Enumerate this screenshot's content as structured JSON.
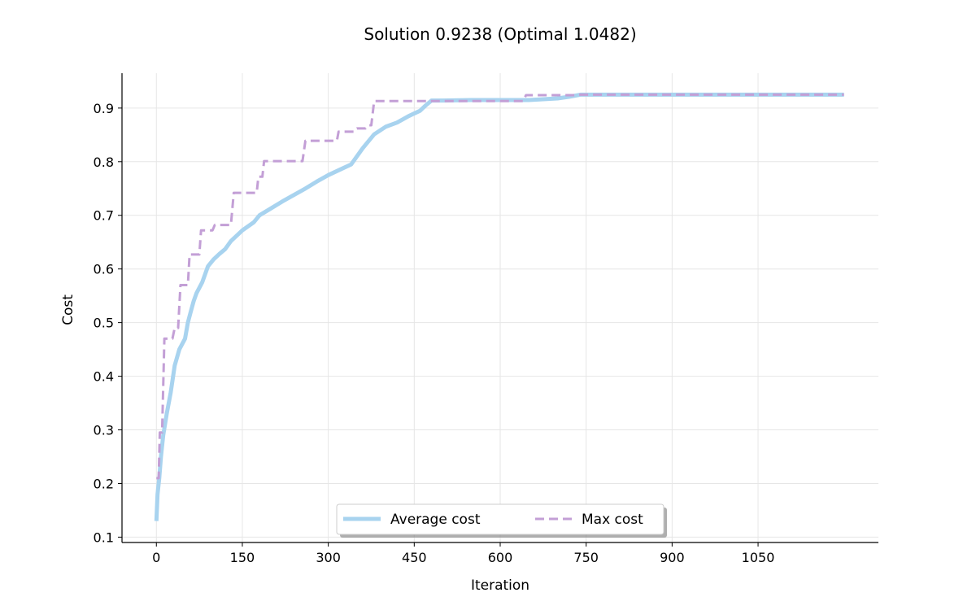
{
  "chart_data": {
    "type": "line",
    "title": "Solution 0.9238 (Optimal 1.0482)",
    "xlabel": "Iteration",
    "ylabel": "Cost",
    "xlim": [
      -60,
      1260
    ],
    "ylim": [
      0.09,
      0.965
    ],
    "xticks": [
      0,
      150,
      300,
      450,
      600,
      750,
      900,
      1050
    ],
    "yticks": [
      0.1,
      0.2,
      0.3,
      0.4,
      0.5,
      0.6,
      0.7,
      0.8,
      0.9
    ],
    "grid": true,
    "legend": {
      "placement": "lower-center"
    },
    "series": [
      {
        "name": "Average cost",
        "color": "#a8d3ef",
        "style": "solid",
        "x": [
          0,
          2,
          5,
          8,
          12,
          18,
          25,
          32,
          40,
          50,
          55,
          60,
          65,
          70,
          80,
          90,
          100,
          110,
          120,
          130,
          150,
          170,
          180,
          200,
          220,
          240,
          260,
          280,
          300,
          320,
          340,
          360,
          380,
          400,
          420,
          440,
          460,
          470,
          480,
          500,
          550,
          600,
          650,
          700,
          720,
          740,
          800,
          900,
          1000,
          1100,
          1200
        ],
        "y": [
          0.13,
          0.18,
          0.21,
          0.25,
          0.29,
          0.33,
          0.37,
          0.42,
          0.45,
          0.47,
          0.5,
          0.52,
          0.54,
          0.555,
          0.575,
          0.605,
          0.618,
          0.628,
          0.637,
          0.652,
          0.672,
          0.687,
          0.7,
          0.713,
          0.726,
          0.738,
          0.75,
          0.763,
          0.775,
          0.785,
          0.795,
          0.825,
          0.851,
          0.865,
          0.873,
          0.885,
          0.895,
          0.905,
          0.914,
          0.914,
          0.915,
          0.915,
          0.915,
          0.918,
          0.921,
          0.925,
          0.925,
          0.925,
          0.925,
          0.925,
          0.925
        ]
      },
      {
        "name": "Max cost",
        "color": "#c39fd6",
        "style": "dashed",
        "x": [
          0,
          4,
          6,
          10,
          14,
          28,
          32,
          38,
          42,
          55,
          58,
          75,
          78,
          98,
          102,
          130,
          135,
          175,
          178,
          185,
          188,
          255,
          260,
          315,
          318,
          345,
          350,
          365,
          370,
          375,
          380,
          640,
          645,
          730,
          735,
          1200
        ],
        "y": [
          0.21,
          0.21,
          0.295,
          0.295,
          0.47,
          0.47,
          0.49,
          0.49,
          0.57,
          0.57,
          0.627,
          0.627,
          0.672,
          0.672,
          0.682,
          0.682,
          0.742,
          0.742,
          0.772,
          0.772,
          0.801,
          0.801,
          0.839,
          0.839,
          0.856,
          0.856,
          0.862,
          0.862,
          0.868,
          0.868,
          0.913,
          0.913,
          0.924,
          0.924,
          0.925,
          0.925
        ]
      }
    ]
  }
}
